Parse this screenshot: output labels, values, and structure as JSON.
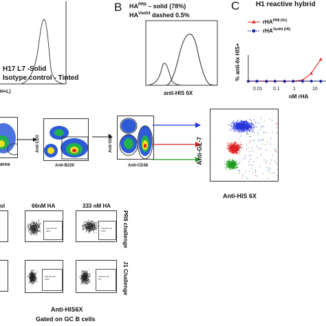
{
  "panelA": {
    "legend_line1": "H17 L7 -Solid",
    "legend_line2": "Isotype control - Tinted",
    "x_label_fragment": "H+L)"
  },
  "panelB": {
    "letter": "B",
    "legend_solid_prefix": "HA",
    "legend_solid_sup": "PR8",
    "legend_solid_suffix": " – solid (78%)",
    "legend_dashed_prefix": "HA",
    "legend_dashed_sup": "Viet04",
    "legend_dashed_suffix": " dashed 0.5%",
    "x_label": "anti-HIS 6X"
  },
  "panelC": {
    "letter": "C",
    "title": "H1 reactive hybrid",
    "ylabel": "% anti-6x HIS+",
    "xlabel": "nM rHA",
    "legend": [
      {
        "prefix": "rHA",
        "sup": "PR8",
        "suffix": " (H1)"
      },
      {
        "prefix": "rHA",
        "sup": "Viet04",
        "suffix": " (H5)"
      }
    ],
    "tick_labels": [
      "0.01",
      "0.1",
      "1",
      "10"
    ],
    "chart_data": {
      "type": "line",
      "x": [
        0.001,
        0.003,
        0.01,
        0.03,
        0.1,
        0.3,
        1,
        3,
        10
      ],
      "series": [
        {
          "name": "rHA PR8 (H1)",
          "color": "#e0302c",
          "values": [
            0,
            0,
            0,
            0,
            0,
            0,
            2,
            15,
            42
          ]
        },
        {
          "name": "rHA Viet04 (H5)",
          "color": "#1c2fa0",
          "values": [
            0,
            0,
            0,
            0,
            0,
            0,
            0,
            0,
            0
          ]
        }
      ],
      "xscale": "log"
    }
  },
  "panelD": {
    "area_label": "area",
    "cd3_label": "Anti-CD3",
    "b220_label": "Anti-B220",
    "gl7_label": "Anti-GL-7",
    "cd38_label": "Anti-CD38",
    "big_gl7_label": "Anti-GL-7",
    "big_his_label": "Anti-HIS 6X",
    "arrow_colors": [
      "#2233dd",
      "#dd2222",
      "#229922"
    ]
  },
  "panelE": {
    "col_ctrl_fragment": "ol",
    "col_66": "66nM HA",
    "col_333": "333 nM HA",
    "row1_label": "PR8 challenge",
    "row2_label": "J1 Challenge",
    "x_label": "Anti-HIS6X",
    "gate_note": "Gated on GC B cells",
    "gate_labels": [
      "Anti-GC HA",
      "Anti-GC HA",
      "Anti-GC HA",
      "Anti-GC HA"
    ],
    "gate_values": [
      "25%",
      "0.5%",
      "0.8%",
      "1%"
    ]
  }
}
